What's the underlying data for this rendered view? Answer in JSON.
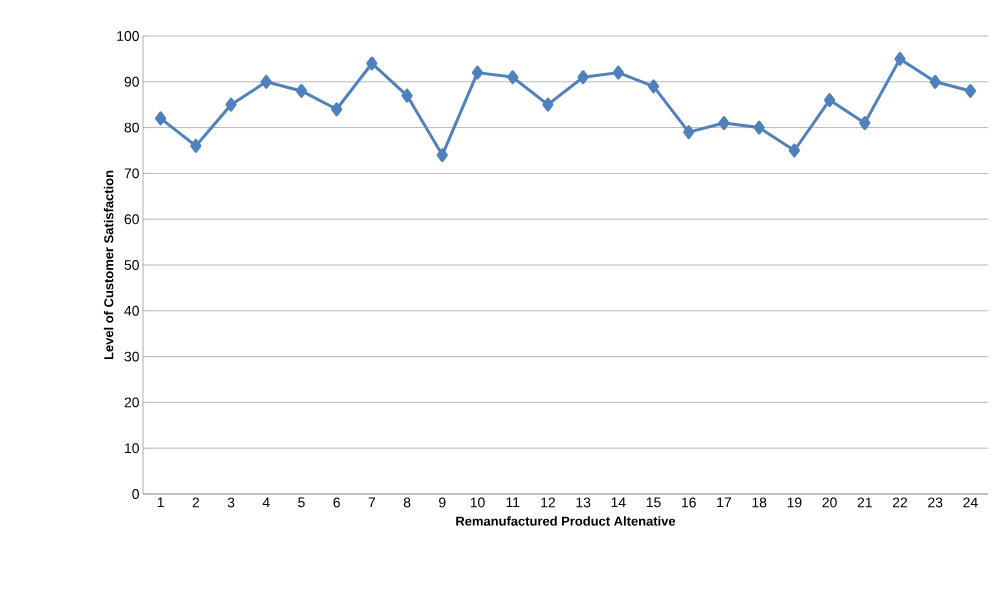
{
  "chart_data": {
    "type": "line",
    "xlabel": "Remanufactured Product  Altenative",
    "ylabel": "Level of Customer Satisfaction",
    "categories": [
      "1",
      "2",
      "3",
      "4",
      "5",
      "6",
      "7",
      "8",
      "9",
      "10",
      "11",
      "12",
      "13",
      "14",
      "15",
      "16",
      "17",
      "18",
      "19",
      "20",
      "21",
      "22",
      "23",
      "24"
    ],
    "values": [
      82,
      76,
      85,
      90,
      88,
      84,
      94,
      87,
      74,
      92,
      91,
      85,
      91,
      92,
      89,
      79,
      81,
      80,
      75,
      86,
      81,
      95,
      90,
      88
    ],
    "color": "#4f81bd",
    "ylim": [
      0,
      100
    ],
    "yticks": [
      0,
      10,
      20,
      30,
      40,
      50,
      60,
      70,
      80,
      90,
      100
    ],
    "grid": "y",
    "marker": "diamond",
    "line_style": "solid"
  }
}
